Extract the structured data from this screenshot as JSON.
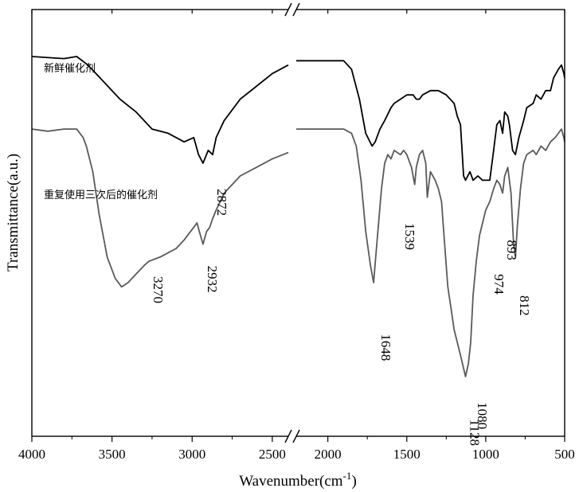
{
  "chart_data": {
    "type": "line",
    "xlabel": "Wavenumber(cm",
    "xlabel_sup": "-1",
    "xlabel_tail": ")",
    "ylabel": "Transmittance(a.u.)",
    "x_ticks": [
      "4000",
      "3500",
      "3000",
      "2500",
      "2000",
      "1500",
      "1000",
      "500"
    ],
    "x_break": [
      2400,
      2200
    ],
    "x_segments": [
      [
        4000,
        2400
      ],
      [
        2200,
        500
      ]
    ],
    "series": [
      {
        "name": "新鲜催化剂",
        "color": "#000000",
        "points": [
          [
            4000,
            0.89
          ],
          [
            3800,
            0.885
          ],
          [
            3720,
            0.89
          ],
          [
            3650,
            0.87
          ],
          [
            3550,
            0.83
          ],
          [
            3450,
            0.79
          ],
          [
            3350,
            0.76
          ],
          [
            3250,
            0.72
          ],
          [
            3150,
            0.71
          ],
          [
            3050,
            0.69
          ],
          [
            2990,
            0.7
          ],
          [
            2960,
            0.66
          ],
          [
            2932,
            0.64
          ],
          [
            2900,
            0.67
          ],
          [
            2872,
            0.66
          ],
          [
            2850,
            0.7
          ],
          [
            2800,
            0.74
          ],
          [
            2700,
            0.79
          ],
          [
            2600,
            0.82
          ],
          [
            2500,
            0.85
          ],
          [
            2400,
            0.87
          ],
          [
            2200,
            0.88
          ],
          [
            2000,
            0.88
          ],
          [
            1900,
            0.88
          ],
          [
            1850,
            0.86
          ],
          [
            1800,
            0.79
          ],
          [
            1760,
            0.71
          ],
          [
            1720,
            0.68
          ],
          [
            1700,
            0.69
          ],
          [
            1690,
            0.7
          ],
          [
            1670,
            0.72
          ],
          [
            1640,
            0.74
          ],
          [
            1600,
            0.77
          ],
          [
            1580,
            0.78
          ],
          [
            1540,
            0.79
          ],
          [
            1500,
            0.8
          ],
          [
            1460,
            0.8
          ],
          [
            1440,
            0.79
          ],
          [
            1420,
            0.79
          ],
          [
            1400,
            0.8
          ],
          [
            1350,
            0.81
          ],
          [
            1300,
            0.81
          ],
          [
            1250,
            0.8
          ],
          [
            1200,
            0.78
          ],
          [
            1180,
            0.75
          ],
          [
            1160,
            0.73
          ],
          [
            1140,
            0.61
          ],
          [
            1128,
            0.6
          ],
          [
            1100,
            0.62
          ],
          [
            1080,
            0.6
          ],
          [
            1050,
            0.61
          ],
          [
            1020,
            0.6
          ],
          [
            974,
            0.6
          ],
          [
            950,
            0.67
          ],
          [
            930,
            0.73
          ],
          [
            910,
            0.74
          ],
          [
            893,
            0.71
          ],
          [
            880,
            0.76
          ],
          [
            860,
            0.75
          ],
          [
            850,
            0.73
          ],
          [
            830,
            0.67
          ],
          [
            812,
            0.66
          ],
          [
            790,
            0.7
          ],
          [
            760,
            0.74
          ],
          [
            740,
            0.77
          ],
          [
            700,
            0.78
          ],
          [
            680,
            0.8
          ],
          [
            650,
            0.79
          ],
          [
            620,
            0.81
          ],
          [
            590,
            0.81
          ],
          [
            570,
            0.84
          ],
          [
            540,
            0.86
          ],
          [
            520,
            0.87
          ],
          [
            505,
            0.85
          ],
          [
            500,
            0.84
          ]
        ]
      },
      {
        "name": "重复使用三次后的催化剂",
        "color": "#5a5a5a",
        "points": [
          [
            4000,
            0.72
          ],
          [
            3900,
            0.715
          ],
          [
            3800,
            0.72
          ],
          [
            3720,
            0.72
          ],
          [
            3680,
            0.7
          ],
          [
            3660,
            0.68
          ],
          [
            3620,
            0.62
          ],
          [
            3580,
            0.52
          ],
          [
            3530,
            0.42
          ],
          [
            3480,
            0.37
          ],
          [
            3440,
            0.35
          ],
          [
            3400,
            0.36
          ],
          [
            3350,
            0.38
          ],
          [
            3300,
            0.4
          ],
          [
            3270,
            0.41
          ],
          [
            3200,
            0.42
          ],
          [
            3100,
            0.44
          ],
          [
            3050,
            0.46
          ],
          [
            2990,
            0.49
          ],
          [
            2970,
            0.5
          ],
          [
            2955,
            0.48
          ],
          [
            2932,
            0.45
          ],
          [
            2910,
            0.48
          ],
          [
            2890,
            0.49
          ],
          [
            2872,
            0.51
          ],
          [
            2850,
            0.53
          ],
          [
            2800,
            0.57
          ],
          [
            2750,
            0.59
          ],
          [
            2700,
            0.61
          ],
          [
            2600,
            0.63
          ],
          [
            2500,
            0.65
          ],
          [
            2400,
            0.665
          ],
          [
            2200,
            0.72
          ],
          [
            2000,
            0.72
          ],
          [
            1900,
            0.72
          ],
          [
            1850,
            0.71
          ],
          [
            1820,
            0.68
          ],
          [
            1790,
            0.6
          ],
          [
            1760,
            0.48
          ],
          [
            1730,
            0.4
          ],
          [
            1710,
            0.36
          ],
          [
            1690,
            0.45
          ],
          [
            1660,
            0.58
          ],
          [
            1640,
            0.64
          ],
          [
            1620,
            0.66
          ],
          [
            1600,
            0.65
          ],
          [
            1580,
            0.67
          ],
          [
            1540,
            0.66
          ],
          [
            1520,
            0.67
          ],
          [
            1500,
            0.66
          ],
          [
            1470,
            0.63
          ],
          [
            1450,
            0.59
          ],
          [
            1440,
            0.63
          ],
          [
            1420,
            0.66
          ],
          [
            1400,
            0.67
          ],
          [
            1380,
            0.64
          ],
          [
            1370,
            0.56
          ],
          [
            1350,
            0.62
          ],
          [
            1320,
            0.6
          ],
          [
            1300,
            0.58
          ],
          [
            1280,
            0.55
          ],
          [
            1260,
            0.45
          ],
          [
            1240,
            0.35
          ],
          [
            1220,
            0.3
          ],
          [
            1200,
            0.25
          ],
          [
            1180,
            0.22
          ],
          [
            1160,
            0.19
          ],
          [
            1128,
            0.14
          ],
          [
            1110,
            0.17
          ],
          [
            1095,
            0.22
          ],
          [
            1080,
            0.33
          ],
          [
            1060,
            0.41
          ],
          [
            1040,
            0.47
          ],
          [
            1000,
            0.53
          ],
          [
            974,
            0.55
          ],
          [
            950,
            0.58
          ],
          [
            930,
            0.6
          ],
          [
            910,
            0.59
          ],
          [
            893,
            0.57
          ],
          [
            880,
            0.61
          ],
          [
            860,
            0.63
          ],
          [
            840,
            0.57
          ],
          [
            825,
            0.46
          ],
          [
            812,
            0.42
          ],
          [
            800,
            0.49
          ],
          [
            780,
            0.58
          ],
          [
            760,
            0.64
          ],
          [
            740,
            0.66
          ],
          [
            700,
            0.67
          ],
          [
            680,
            0.66
          ],
          [
            650,
            0.68
          ],
          [
            620,
            0.67
          ],
          [
            590,
            0.69
          ],
          [
            560,
            0.7
          ],
          [
            540,
            0.71
          ],
          [
            520,
            0.72
          ],
          [
            505,
            0.7
          ],
          [
            500,
            0.69
          ]
        ]
      }
    ],
    "annotations": [
      {
        "text": "3270",
        "x": 3270,
        "y": 0.375
      },
      {
        "text": "2932",
        "x": 2932,
        "y": 0.4
      },
      {
        "text": "2872",
        "x": 2872,
        "y": 0.58
      },
      {
        "text": "1648",
        "x": 1690,
        "y": 0.24
      },
      {
        "text": "1539",
        "x": 1539,
        "y": 0.5
      },
      {
        "text": "1128",
        "x": 1128,
        "y": 0.04
      },
      {
        "text": "1080",
        "x": 1080,
        "y": 0.08
      },
      {
        "text": "974",
        "x": 974,
        "y": 0.38
      },
      {
        "text": "893",
        "x": 893,
        "y": 0.46
      },
      {
        "text": "812",
        "x": 812,
        "y": 0.33
      }
    ],
    "grid": false,
    "legend": "inline labels"
  }
}
